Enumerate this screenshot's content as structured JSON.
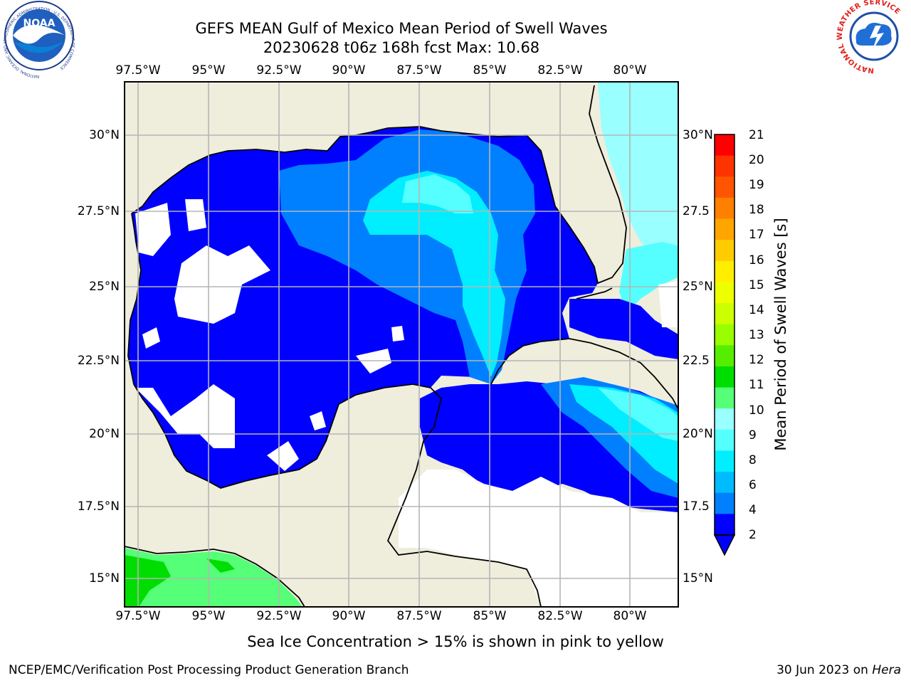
{
  "title": {
    "line1": "GEFS MEAN Gulf of Mexico Mean Period of Swell Waves",
    "line2": "20230628 t06z 168h fcst   Max: 10.68"
  },
  "map": {
    "lon_labels": [
      "97.5°W",
      "95°W",
      "92.5°W",
      "90°W",
      "87.5°W",
      "85°W",
      "82.5°W",
      "80°W"
    ],
    "lat_labels_left": [
      "30°N",
      "27.5°N",
      "25°N",
      "22.5°N",
      "20°N",
      "17.5°N",
      "15°N"
    ],
    "lat_labels_right": [
      "30°N",
      "27.5",
      "25°N",
      "22.5",
      "20°N",
      "17.5",
      "15°N"
    ],
    "land_color": "#efeddc",
    "grid_color": "#b5b5b5"
  },
  "colorbar": {
    "label": "Mean Period of Swell Waves [s]",
    "ticks": [
      "21",
      "20",
      "19",
      "18",
      "17",
      "16",
      "15",
      "14",
      "13",
      "12",
      "11",
      "10",
      "9",
      "8",
      "6",
      "4",
      "2"
    ],
    "colors": [
      "#ff0000",
      "#ff3300",
      "#ff5500",
      "#ff8000",
      "#ffa500",
      "#ffcc00",
      "#ffee00",
      "#eeff00",
      "#ccff00",
      "#99ff00",
      "#55ee00",
      "#00dd00",
      "#55ff77",
      "#99ffff",
      "#55ffff",
      "#00eeff",
      "#00bbff",
      "#0080ff",
      "#0000ff"
    ]
  },
  "logos": {
    "noaa_text": "NOAA",
    "noaa_ring": "NATIONAL OCEANIC AND ATMOSPHERIC ADMINISTRATION · U.S. DEPARTMENT OF COMMERCE",
    "nws_ring": "NATIONAL WEATHER SERVICE"
  },
  "footnote": "Sea Ice Concentration > 15% is shown in pink to yellow",
  "credit": "NCEP/EMC/Verification Post Processing Product Generation Branch",
  "date_text": "30 Jun 2023 on",
  "date_host": "Hera"
}
